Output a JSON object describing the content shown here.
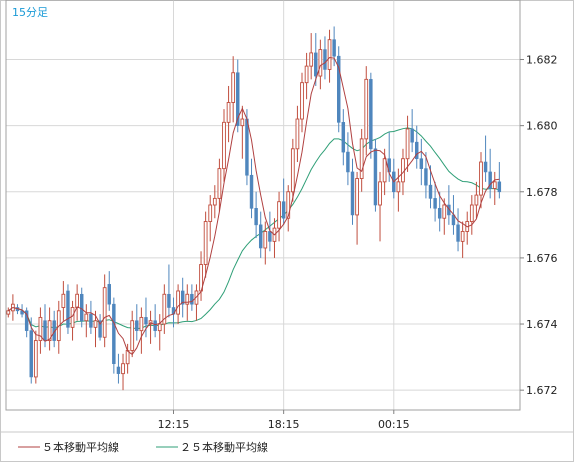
{
  "chart_data": {
    "type": "candlestick",
    "timeframe_label": "15分足",
    "y_ticks": [
      1.672,
      1.674,
      1.676,
      1.678,
      1.68,
      1.682
    ],
    "y_tick_labels": [
      "1.672",
      "1.674",
      "1.676",
      "1.678",
      "1.680",
      "1.682"
    ],
    "ylim": [
      1.6714,
      1.6838
    ],
    "x_ticks": [
      {
        "index": 36,
        "label": "12:15"
      },
      {
        "index": 60,
        "label": "18:15"
      },
      {
        "index": 84,
        "label": "00:15"
      }
    ],
    "n_slots": 112,
    "grid": true,
    "legend": [
      {
        "label": "５本移動平均線",
        "color": "#b04040"
      },
      {
        "label": "２５本移動平均線",
        "color": "#2f9f77"
      }
    ],
    "colors": {
      "up": "#c04d3d",
      "down": "#4f86bd",
      "ma5": "#b04040",
      "ma25": "#2f9f77",
      "grid": "#d8d8d8",
      "label": "#1a9ad6"
    },
    "candles": [
      [
        1.6743,
        1.6745,
        1.6742,
        1.6744
      ],
      [
        1.6744,
        1.6749,
        1.6741,
        1.6746
      ],
      [
        1.6745,
        1.6746,
        1.6743,
        1.6744
      ],
      [
        1.6744,
        1.6746,
        1.6742,
        1.6743
      ],
      [
        1.6744,
        1.6745,
        1.6736,
        1.6738
      ],
      [
        1.6738,
        1.6742,
        1.6722,
        1.6724
      ],
      [
        1.6724,
        1.6738,
        1.6722,
        1.6735
      ],
      [
        1.6735,
        1.6745,
        1.6731,
        1.6742
      ],
      [
        1.6741,
        1.6746,
        1.6733,
        1.6735
      ],
      [
        1.6735,
        1.6745,
        1.6732,
        1.6741
      ],
      [
        1.6741,
        1.6744,
        1.6733,
        1.6735
      ],
      [
        1.6735,
        1.6747,
        1.6731,
        1.6744
      ],
      [
        1.6745,
        1.6753,
        1.6741,
        1.6749
      ],
      [
        1.675,
        1.6752,
        1.6737,
        1.6739
      ],
      [
        1.6739,
        1.6747,
        1.6735,
        1.6745
      ],
      [
        1.6745,
        1.6752,
        1.6741,
        1.6749
      ],
      [
        1.6749,
        1.6751,
        1.6739,
        1.6741
      ],
      [
        1.6741,
        1.6746,
        1.6736,
        1.6743
      ],
      [
        1.6743,
        1.6747,
        1.6737,
        1.6739
      ],
      [
        1.6739,
        1.6744,
        1.6733,
        1.6741
      ],
      [
        1.6741,
        1.6743,
        1.6735,
        1.6736
      ],
      [
        1.6736,
        1.6755,
        1.6733,
        1.6751
      ],
      [
        1.6752,
        1.6756,
        1.6744,
        1.6746
      ],
      [
        1.6746,
        1.6748,
        1.6725,
        1.6728
      ],
      [
        1.6727,
        1.6731,
        1.6722,
        1.6725
      ],
      [
        1.6725,
        1.6731,
        1.672,
        1.6728
      ],
      [
        1.6728,
        1.6734,
        1.6725,
        1.6732
      ],
      [
        1.6732,
        1.6744,
        1.673,
        1.6741
      ],
      [
        1.6741,
        1.6746,
        1.6735,
        1.6738
      ],
      [
        1.6738,
        1.6745,
        1.6731,
        1.6742
      ],
      [
        1.6742,
        1.6748,
        1.6736,
        1.674
      ],
      [
        1.674,
        1.6744,
        1.6734,
        1.6741
      ],
      [
        1.6741,
        1.6746,
        1.6736,
        1.6738
      ],
      [
        1.6738,
        1.6743,
        1.6732,
        1.674
      ],
      [
        1.674,
        1.6752,
        1.6737,
        1.6749
      ],
      [
        1.6749,
        1.6758,
        1.6742,
        1.6745
      ],
      [
        1.6745,
        1.6748,
        1.6739,
        1.6743
      ],
      [
        1.6743,
        1.6752,
        1.674,
        1.675
      ],
      [
        1.675,
        1.6754,
        1.6742,
        1.6746
      ],
      [
        1.6746,
        1.6752,
        1.6741,
        1.6749
      ],
      [
        1.6749,
        1.6752,
        1.6744,
        1.6746
      ],
      [
        1.6746,
        1.6752,
        1.6741,
        1.675
      ],
      [
        1.675,
        1.6762,
        1.6747,
        1.6758
      ],
      [
        1.6758,
        1.6774,
        1.6754,
        1.6771
      ],
      [
        1.6771,
        1.6779,
        1.6765,
        1.6776
      ],
      [
        1.6776,
        1.6782,
        1.6772,
        1.6778
      ],
      [
        1.6778,
        1.679,
        1.6774,
        1.6787
      ],
      [
        1.6787,
        1.6805,
        1.6783,
        1.6801
      ],
      [
        1.6801,
        1.6812,
        1.6795,
        1.6807
      ],
      [
        1.6807,
        1.6821,
        1.6801,
        1.6816
      ],
      [
        1.6816,
        1.682,
        1.6798,
        1.68
      ],
      [
        1.68,
        1.6806,
        1.679,
        1.6802
      ],
      [
        1.6802,
        1.6805,
        1.6782,
        1.6785
      ],
      [
        1.6785,
        1.679,
        1.6772,
        1.6775
      ],
      [
        1.6775,
        1.678,
        1.6766,
        1.677
      ],
      [
        1.677,
        1.6774,
        1.676,
        1.6763
      ],
      [
        1.6763,
        1.6771,
        1.6758,
        1.6768
      ],
      [
        1.6768,
        1.6774,
        1.6762,
        1.6765
      ],
      [
        1.6765,
        1.6772,
        1.676,
        1.6769
      ],
      [
        1.6769,
        1.678,
        1.6765,
        1.6777
      ],
      [
        1.6777,
        1.6784,
        1.677,
        1.6772
      ],
      [
        1.6772,
        1.6782,
        1.6768,
        1.678
      ],
      [
        1.678,
        1.6796,
        1.6777,
        1.6793
      ],
      [
        1.6793,
        1.6806,
        1.6789,
        1.6802
      ],
      [
        1.6802,
        1.6816,
        1.6798,
        1.6813
      ],
      [
        1.6813,
        1.6822,
        1.6808,
        1.6818
      ],
      [
        1.6818,
        1.6828,
        1.6814,
        1.6822
      ],
      [
        1.6822,
        1.6828,
        1.6812,
        1.6815
      ],
      [
        1.6815,
        1.6826,
        1.6811,
        1.6823
      ],
      [
        1.6823,
        1.6827,
        1.6814,
        1.6817
      ],
      [
        1.6817,
        1.6829,
        1.6813,
        1.6826
      ],
      [
        1.6826,
        1.683,
        1.6818,
        1.6821
      ],
      [
        1.6821,
        1.6824,
        1.6798,
        1.6801
      ],
      [
        1.6801,
        1.6805,
        1.6788,
        1.6792
      ],
      [
        1.6792,
        1.6798,
        1.6782,
        1.6786
      ],
      [
        1.6786,
        1.679,
        1.677,
        1.6773
      ],
      [
        1.6773,
        1.6786,
        1.6764,
        1.6784
      ],
      [
        1.6784,
        1.6799,
        1.678,
        1.6796
      ],
      [
        1.6796,
        1.6818,
        1.6791,
        1.6814
      ],
      [
        1.6814,
        1.6816,
        1.679,
        1.6793
      ],
      [
        1.6793,
        1.6796,
        1.6774,
        1.6776
      ],
      [
        1.6776,
        1.6786,
        1.6765,
        1.6783
      ],
      [
        1.6783,
        1.6793,
        1.6779,
        1.679
      ],
      [
        1.679,
        1.6798,
        1.6783,
        1.6786
      ],
      [
        1.6786,
        1.679,
        1.6778,
        1.678
      ],
      [
        1.678,
        1.6787,
        1.6774,
        1.6783
      ],
      [
        1.6783,
        1.6793,
        1.6779,
        1.679
      ],
      [
        1.679,
        1.6803,
        1.6786,
        1.6799
      ],
      [
        1.6799,
        1.6805,
        1.6792,
        1.6795
      ],
      [
        1.6795,
        1.68,
        1.6787,
        1.679
      ],
      [
        1.679,
        1.6796,
        1.6782,
        1.6787
      ],
      [
        1.6787,
        1.6792,
        1.6778,
        1.6782
      ],
      [
        1.6782,
        1.6788,
        1.6775,
        1.6778
      ],
      [
        1.6778,
        1.6783,
        1.6771,
        1.6775
      ],
      [
        1.6775,
        1.678,
        1.6768,
        1.6772
      ],
      [
        1.6772,
        1.6778,
        1.6767,
        1.6776
      ],
      [
        1.6776,
        1.6782,
        1.677,
        1.6773
      ],
      [
        1.6773,
        1.6779,
        1.6767,
        1.677
      ],
      [
        1.677,
        1.6775,
        1.6762,
        1.6765
      ],
      [
        1.6765,
        1.6771,
        1.676,
        1.6768
      ],
      [
        1.6768,
        1.6774,
        1.6764,
        1.6771
      ],
      [
        1.6771,
        1.6779,
        1.6767,
        1.6776
      ],
      [
        1.6776,
        1.6783,
        1.6772,
        1.6779
      ],
      [
        1.6779,
        1.6792,
        1.6775,
        1.6789
      ],
      [
        1.6789,
        1.6797,
        1.6783,
        1.6786
      ],
      [
        1.6786,
        1.6793,
        1.6778,
        1.6781
      ],
      [
        1.6781,
        1.6786,
        1.6776,
        1.6783
      ],
      [
        1.6783,
        1.6789,
        1.6778,
        1.678
      ]
    ]
  }
}
